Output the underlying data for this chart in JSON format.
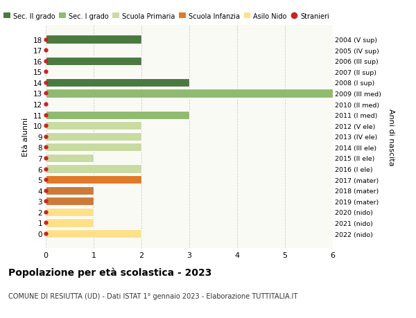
{
  "ages": [
    0,
    1,
    2,
    3,
    4,
    5,
    6,
    7,
    8,
    9,
    10,
    11,
    12,
    13,
    14,
    15,
    16,
    17,
    18
  ],
  "right_labels": [
    "2022 (nido)",
    "2021 (nido)",
    "2020 (nido)",
    "2019 (mater)",
    "2018 (mater)",
    "2017 (mater)",
    "2016 (I ele)",
    "2015 (II ele)",
    "2014 (III ele)",
    "2013 (IV ele)",
    "2012 (V ele)",
    "2011 (I med)",
    "2010 (II med)",
    "2009 (III med)",
    "2008 (I sup)",
    "2007 (II sup)",
    "2006 (III sup)",
    "2005 (IV sup)",
    "2004 (V sup)"
  ],
  "values": [
    2,
    1,
    1,
    1,
    1,
    2,
    2,
    1,
    2,
    2,
    2,
    3,
    0,
    6,
    3,
    0,
    2,
    0,
    2
  ],
  "bar_colors": [
    "#FFE08A",
    "#FFE08A",
    "#FFE08A",
    "#CC7A3A",
    "#CC7A3A",
    "#E07A28",
    "#C8DBA0",
    "#C8DBA0",
    "#C8DBA0",
    "#C8DBA0",
    "#C8DBA0",
    "#8FBB70",
    "#8FBB70",
    "#8FBB70",
    "#4A7A40",
    "#4A7A40",
    "#4A7A40",
    "#4A7A40",
    "#4A7A40"
  ],
  "legend_labels": [
    "Sec. II grado",
    "Sec. I grado",
    "Scuola Primaria",
    "Scuola Infanzia",
    "Asilo Nido",
    "Stranieri"
  ],
  "legend_colors": [
    "#4A7A40",
    "#8FBB70",
    "#C8DBA0",
    "#E07A28",
    "#FFE08A",
    "#CC2222"
  ],
  "title_bold": "Popolazione per età scolastica - 2023",
  "subtitle": "COMUNE DI RESIUTTA (UD) - Dati ISTAT 1° gennaio 2023 - Elaborazione TUTTITALIA.IT",
  "ylabel_left": "Età alunni",
  "ylabel_right": "Anni di nascita",
  "xlim": [
    0,
    6
  ],
  "xticks": [
    0,
    1,
    2,
    3,
    4,
    5,
    6
  ],
  "background_color": "#FFFFFF",
  "plot_bg_color": "#FAFAF5",
  "grid_color": "#CCCCCC",
  "stranieri_color": "#CC2222",
  "bar_height": 0.78
}
